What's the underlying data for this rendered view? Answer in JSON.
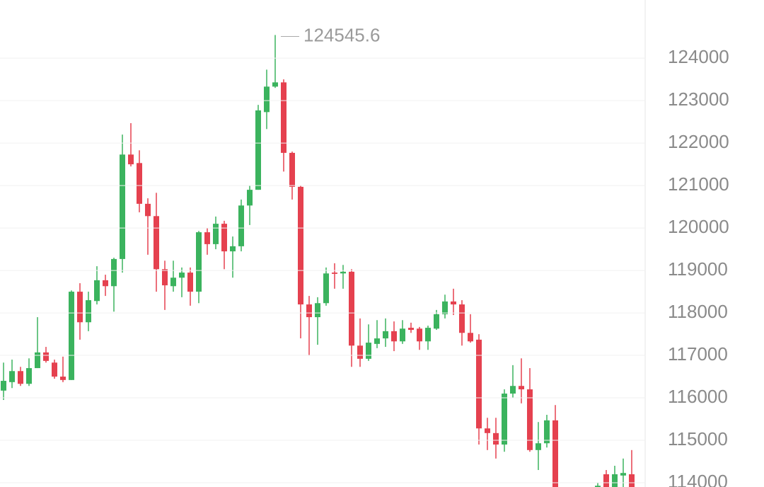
{
  "chart_data": {
    "type": "candlestick",
    "x": [
      0,
      1,
      2,
      3,
      4,
      5,
      6,
      7,
      8,
      9,
      10,
      11,
      12,
      13,
      14,
      15,
      16,
      17,
      18,
      19,
      20,
      21,
      22,
      23,
      24,
      25,
      26,
      27,
      28,
      29,
      30,
      31,
      32,
      33,
      34,
      35,
      36,
      37,
      38,
      39,
      40,
      41,
      42,
      43,
      44,
      45,
      46,
      47,
      48,
      49,
      50,
      51,
      52,
      53,
      54,
      55,
      56,
      57,
      58,
      59,
      60,
      61,
      62,
      63,
      64,
      65,
      70,
      71,
      72,
      73,
      74
    ],
    "open": [
      116170,
      116370,
      116630,
      116330,
      116700,
      117070,
      116830,
      116500,
      116420,
      118500,
      117780,
      118280,
      118770,
      118630,
      119270,
      121730,
      121530,
      120570,
      120280,
      119030,
      118630,
      118830,
      118950,
      118500,
      119900,
      119620,
      120100,
      119450,
      119570,
      120530,
      120900,
      122730,
      123330,
      123430,
      121770,
      120970,
      118200,
      117900,
      118230,
      118950,
      118930,
      118970,
      117230,
      116920,
      117270,
      117400,
      117570,
      117330,
      117650,
      117630,
      117330,
      117630,
      117970,
      118270,
      118200,
      117530,
      117370,
      115280,
      115170,
      114900,
      116100,
      116280,
      116200,
      114770,
      114930,
      115470,
      113700,
      114200,
      113700,
      114170,
      114200
    ],
    "high": [
      116830,
      116900,
      116730,
      116930,
      117900,
      117200,
      116900,
      116970,
      118530,
      118700,
      118500,
      119100,
      118900,
      119300,
      122200,
      122470,
      121830,
      120700,
      120830,
      119230,
      119230,
      119070,
      119070,
      119930,
      120000,
      120270,
      120170,
      119800,
      120670,
      121000,
      122900,
      123730,
      124545.6,
      123500,
      121800,
      121000,
      118400,
      118370,
      119070,
      119170,
      119130,
      119030,
      117870,
      117730,
      117830,
      117870,
      117800,
      117830,
      117770,
      117670,
      117700,
      118070,
      118430,
      118570,
      118300,
      117970,
      117500,
      115530,
      115530,
      116200,
      116770,
      116930,
      116700,
      115430,
      115600,
      115830,
      114000,
      114300,
      114400,
      114570,
      114770
    ],
    "low": [
      115950,
      116230,
      116280,
      116280,
      116700,
      116830,
      116450,
      116370,
      116420,
      117370,
      117570,
      118200,
      118400,
      118030,
      118950,
      121450,
      120370,
      119370,
      118500,
      118070,
      118500,
      118370,
      118170,
      118230,
      119370,
      119500,
      119030,
      118830,
      119450,
      120070,
      120900,
      122330,
      123300,
      121330,
      120670,
      117400,
      117000,
      117250,
      118170,
      118570,
      118570,
      116730,
      116730,
      116870,
      117170,
      117200,
      117100,
      117270,
      117530,
      117130,
      117130,
      117600,
      117870,
      117950,
      117230,
      117300,
      114900,
      114770,
      114570,
      114730,
      116000,
      115870,
      114730,
      114300,
      114830,
      113700,
      113700,
      113700,
      113700,
      113700,
      113700
    ],
    "close": [
      116400,
      116630,
      116330,
      116700,
      117070,
      116870,
      116500,
      116420,
      118500,
      117780,
      118300,
      118770,
      118630,
      119270,
      121730,
      121500,
      120570,
      120280,
      119030,
      118650,
      118830,
      118950,
      118500,
      119900,
      119620,
      120100,
      119450,
      119570,
      120530,
      120900,
      122770,
      123330,
      123430,
      121770,
      120970,
      118200,
      117900,
      118230,
      118930,
      118920,
      118970,
      117230,
      116920,
      117300,
      117400,
      117570,
      117330,
      117630,
      117600,
      117330,
      117650,
      117970,
      118270,
      118200,
      117530,
      117330,
      115280,
      115170,
      114900,
      116100,
      116280,
      116200,
      114770,
      114930,
      115470,
      113700,
      113930,
      113700,
      114200,
      114230,
      113700
    ],
    "up_color": "#3bb35e",
    "down_color": "#e5414f",
    "ylim": [
      113900,
      125370
    ],
    "yticks": [
      114000,
      115000,
      116000,
      117000,
      118000,
      119000,
      120000,
      121000,
      122000,
      123000,
      124000
    ],
    "grid": true,
    "y_axis_side": "right"
  }
}
